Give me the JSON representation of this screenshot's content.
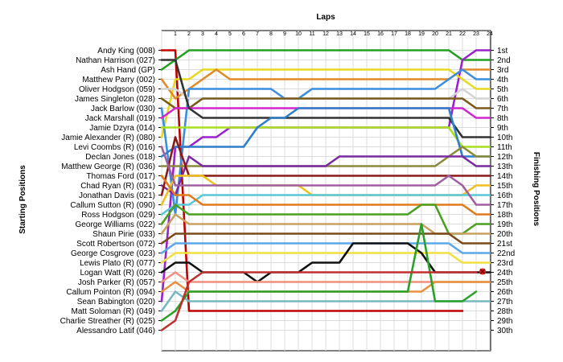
{
  "chart_data": {
    "type": "line",
    "title": "",
    "xlabel": "Laps",
    "ylabel_left": "Starting Positions",
    "ylabel_right": "Finishing Positions",
    "x_ticks": [
      "1",
      "2",
      "3",
      "4",
      "5",
      "6",
      "7",
      "8",
      "9",
      "10",
      "11",
      "12",
      "13",
      "14",
      "15",
      "16",
      "17",
      "18",
      "19",
      "20",
      "21",
      "22",
      "23",
      "24"
    ],
    "y_inverted": true,
    "ylim": [
      1,
      30
    ],
    "grid": true,
    "starting_labels": [
      "Andy King (008)",
      "Nathan Harrison (027)",
      "Ash Hand (GP)",
      "Matthew Parry (002)",
      "Oliver Hodgson (059)",
      "James Singleton (028)",
      "Jack Barlow (030)",
      "Jack Marshall (019)",
      "Jamie Dzyra (014)",
      "Jamie Alexander (R) (080)",
      "Levi Coombs  (R) (016)",
      "Declan Jones (018)",
      "Matthew George (R) (036)",
      "Thomas Ford (017)",
      "Chad Ryan (R) (031)",
      "Jonathan Davis (021)",
      "Callum Sutton  (R) (090)",
      "Ross Hodgson (029)",
      "George Williams (022)",
      "Shaun Pirie (033)",
      "Scott Robertson (072)",
      "George Cosgrove (023)",
      "Lewis Plato (R) (077)",
      "Logan Watt (R) (026)",
      "Josh Parker (R) (057)",
      "Callum Pointon  (R) (094)",
      "Sean Babington (020)",
      "Matt Soloman (R) (049)",
      "Charlie Streather (R) (025)",
      "Alessandro Latif (046)"
    ],
    "finishing_labels": [
      "1st",
      "2nd",
      "3rd",
      "4th",
      "5th",
      "6th",
      "7th",
      "8th",
      "9th",
      "10th",
      "11th",
      "12th",
      "13th",
      "14th",
      "15th",
      "16th",
      "17th",
      "18th",
      "19th",
      "20th",
      "21st",
      "22nd",
      "23rd",
      "24th",
      "25th",
      "26th",
      "27th",
      "28th",
      "29th",
      "30th"
    ],
    "series": [
      {
        "color": "#c00000",
        "values": [
          1,
          1,
          28,
          28,
          28,
          28,
          28,
          28,
          28,
          28,
          28,
          28,
          28,
          28,
          28,
          28,
          28,
          28,
          28,
          28,
          28,
          28,
          28
        ]
      },
      {
        "color": "#22a022",
        "values": [
          3,
          2,
          1,
          1,
          1,
          1,
          1,
          1,
          1,
          1,
          1,
          1,
          1,
          1,
          1,
          1,
          1,
          1,
          1,
          1,
          1,
          1,
          2,
          2,
          2
        ]
      },
      {
        "color": "#9a22cc",
        "values": [
          27,
          11,
          11,
          10,
          10,
          9,
          9,
          9,
          9,
          9,
          9,
          9,
          9,
          9,
          9,
          9,
          9,
          9,
          9,
          9,
          9,
          9,
          2,
          1,
          1
        ]
      },
      {
        "color": "#e8d820",
        "values": [
          10,
          4,
          4,
          3,
          3,
          3,
          3,
          3,
          3,
          3,
          3,
          3,
          3,
          3,
          3,
          3,
          3,
          3,
          3,
          3,
          3,
          3,
          4,
          5,
          5
        ]
      },
      {
        "color": "#e08a28",
        "values": [
          4,
          6,
          5,
          4,
          3,
          4,
          4,
          4,
          4,
          4,
          4,
          4,
          4,
          4,
          4,
          4,
          4,
          4,
          4,
          4,
          4,
          4,
          3,
          3,
          3
        ]
      },
      {
        "color": "#3a8ee0",
        "values": [
          7,
          18,
          5,
          5,
          5,
          5,
          5,
          5,
          5,
          6,
          6,
          5,
          5,
          5,
          5,
          5,
          5,
          5,
          5,
          5,
          5,
          4,
          3,
          4,
          4
        ]
      },
      {
        "color": "#d4d4d4",
        "values": [
          5,
          5,
          6,
          6,
          6,
          6,
          6,
          6,
          6,
          6,
          6,
          6,
          6,
          6,
          6,
          6,
          6,
          6,
          6,
          6,
          6,
          6,
          5,
          6,
          6
        ]
      },
      {
        "color": "#7a5a1a",
        "values": [
          6,
          7,
          7,
          6,
          6,
          6,
          6,
          6,
          6,
          6,
          6,
          6,
          6,
          6,
          6,
          6,
          6,
          6,
          6,
          6,
          6,
          6,
          6,
          7,
          7
        ]
      },
      {
        "color": "#d026d0",
        "values": [
          8,
          7,
          7,
          7,
          7,
          7,
          7,
          7,
          7,
          7,
          7,
          7,
          7,
          7,
          7,
          7,
          7,
          7,
          7,
          7,
          7,
          7,
          7,
          8,
          8
        ]
      },
      {
        "color": "#333333",
        "values": [
          2,
          2,
          7,
          8,
          8,
          8,
          8,
          8,
          8,
          8,
          8,
          8,
          8,
          8,
          8,
          8,
          8,
          8,
          8,
          8,
          8,
          8,
          10,
          10,
          10
        ]
      },
      {
        "color": "#a8e020",
        "values": [
          9,
          9,
          9,
          9,
          9,
          9,
          9,
          9,
          9,
          9,
          9,
          9,
          9,
          9,
          9,
          9,
          9,
          9,
          9,
          9,
          9,
          9,
          11,
          11,
          11
        ]
      },
      {
        "color": "#2e7ec8",
        "values": [
          12,
          11,
          11,
          11,
          11,
          11,
          11,
          9,
          8,
          8,
          7,
          7,
          7,
          7,
          7,
          7,
          7,
          7,
          7,
          7,
          7,
          7,
          12,
          12,
          12
        ]
      },
      {
        "color": "#8a8a3a",
        "values": [
          13,
          13,
          13,
          13,
          13,
          13,
          13,
          13,
          13,
          13,
          13,
          13,
          13,
          13,
          13,
          13,
          13,
          13,
          13,
          13,
          13,
          12,
          11,
          12,
          12
        ]
      },
      {
        "color": "#7a2aa0",
        "values": [
          15,
          16,
          12,
          13,
          13,
          13,
          13,
          13,
          13,
          13,
          13,
          13,
          13,
          12,
          12,
          12,
          12,
          12,
          12,
          12,
          12,
          12,
          12,
          13,
          13
        ]
      },
      {
        "color": "#8a1a1a",
        "values": [
          16,
          10,
          14,
          14,
          14,
          14,
          14,
          14,
          14,
          14,
          14,
          14,
          14,
          14,
          14,
          14,
          14,
          14,
          14,
          14,
          14,
          14,
          14,
          14,
          14
        ]
      },
      {
        "color": "#f0c020",
        "values": [
          17,
          14,
          14,
          14,
          15,
          15,
          15,
          15,
          15,
          15,
          15,
          16,
          16,
          16,
          16,
          16,
          16,
          16,
          16,
          16,
          16,
          16,
          16,
          15,
          15
        ]
      },
      {
        "color": "#58c8d8",
        "values": [
          18,
          17,
          17,
          16,
          16,
          16,
          16,
          16,
          16,
          16,
          16,
          16,
          16,
          16,
          16,
          16,
          16,
          16,
          16,
          16,
          16,
          16,
          16,
          16,
          16
        ]
      },
      {
        "color": "#a060a0",
        "values": [
          11,
          15,
          15,
          15,
          15,
          15,
          15,
          15,
          15,
          15,
          15,
          15,
          15,
          15,
          15,
          15,
          15,
          15,
          15,
          15,
          15,
          14,
          15,
          17,
          17
        ]
      },
      {
        "color": "#e07a1a",
        "values": [
          14,
          16,
          16,
          17,
          17,
          17,
          17,
          17,
          17,
          17,
          17,
          17,
          17,
          17,
          17,
          17,
          17,
          17,
          17,
          17,
          17,
          17,
          17,
          18,
          18
        ]
      },
      {
        "color": "#4aa020",
        "values": [
          19,
          17,
          18,
          18,
          18,
          18,
          18,
          18,
          18,
          18,
          18,
          18,
          18,
          18,
          18,
          18,
          18,
          18,
          18,
          17,
          17,
          20,
          20,
          19,
          19
        ]
      },
      {
        "color": "#c8a060",
        "values": [
          20,
          18,
          19,
          19,
          19,
          19,
          19,
          19,
          19,
          19,
          19,
          19,
          19,
          19,
          19,
          19,
          19,
          19,
          19,
          19,
          20,
          20,
          20,
          20,
          20
        ]
      },
      {
        "color": "#7a4a1a",
        "values": [
          21,
          20,
          20,
          20,
          20,
          20,
          20,
          20,
          20,
          20,
          20,
          20,
          20,
          20,
          20,
          20,
          20,
          20,
          20,
          20,
          20,
          20,
          21,
          21,
          21
        ]
      },
      {
        "color": "#5aa8e8",
        "values": [
          22,
          21,
          21,
          21,
          21,
          21,
          21,
          21,
          21,
          21,
          21,
          21,
          21,
          21,
          21,
          21,
          21,
          21,
          21,
          21,
          21,
          21,
          22,
          22,
          22
        ]
      },
      {
        "color": "#f0e040",
        "values": [
          23,
          22,
          22,
          22,
          22,
          22,
          22,
          22,
          22,
          22,
          22,
          22,
          22,
          22,
          22,
          22,
          22,
          22,
          22,
          22,
          22,
          22,
          23,
          23,
          23
        ]
      },
      {
        "color": "#111111",
        "values": [
          24,
          23,
          23,
          24,
          24,
          24,
          24,
          25,
          24,
          24,
          24,
          23,
          23,
          23,
          21,
          21,
          21,
          21,
          21,
          22,
          24,
          24,
          24,
          24,
          24
        ]
      },
      {
        "color": "#f09080",
        "values": [
          25,
          24,
          25,
          25,
          25,
          25,
          25,
          25,
          25,
          25,
          25,
          25,
          25,
          25,
          25,
          25,
          25,
          25,
          25,
          25,
          25,
          25,
          25,
          25,
          25
        ]
      },
      {
        "color": "#e89040",
        "values": [
          26,
          25,
          26,
          26,
          26,
          26,
          26,
          26,
          26,
          26,
          26,
          26,
          26,
          26,
          26,
          26,
          26,
          26,
          26,
          26,
          25,
          25,
          25,
          25,
          25
        ]
      },
      {
        "color": "#78b8c0",
        "values": [
          28,
          26,
          27,
          27,
          27,
          27,
          27,
          27,
          27,
          27,
          27,
          27,
          27,
          27,
          27,
          27,
          27,
          27,
          27,
          27,
          27,
          27,
          27,
          27,
          27
        ]
      },
      {
        "color": "#2aa02a",
        "values": [
          29,
          28,
          26,
          26,
          26,
          26,
          26,
          26,
          26,
          26,
          26,
          26,
          26,
          26,
          26,
          26,
          26,
          26,
          26,
          19,
          27,
          27,
          27,
          26
        ]
      },
      {
        "color": "#c03030",
        "values": [
          30,
          29,
          25,
          24,
          24,
          24,
          24,
          24,
          24,
          24,
          24,
          24,
          24,
          24,
          24,
          24,
          24,
          24,
          24,
          24,
          24,
          24,
          24,
          24
        ]
      }
    ],
    "marker": {
      "lap": 23,
      "position": 24,
      "color": "#dd2020"
    }
  }
}
